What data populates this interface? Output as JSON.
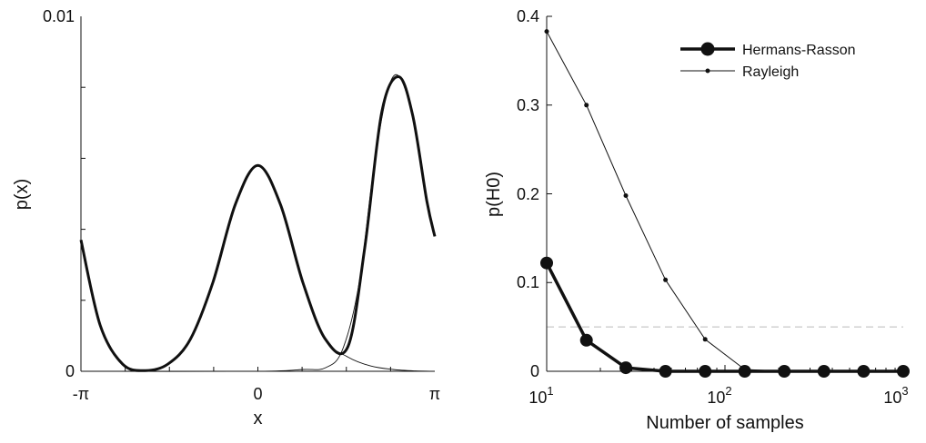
{
  "chart_data": [
    {
      "type": "line",
      "title": "",
      "xlabel": "x",
      "ylabel": "p(x)",
      "xlim": [
        -3.14159,
        3.14159
      ],
      "ylim": [
        0,
        0.01
      ],
      "x_ticks": [
        {
          "value": -3.14159,
          "label": "-π"
        },
        {
          "value": 0,
          "label": "0"
        },
        {
          "value": 3.14159,
          "label": "π"
        }
      ],
      "y_ticks": [
        {
          "value": 0,
          "label": "0"
        },
        {
          "value": 0.01,
          "label": "0.01"
        }
      ],
      "series": [
        {
          "role": "mixture-total",
          "x": [
            -3.1416,
            -2.8,
            -2.4,
            -2.0,
            -1.6,
            -1.2,
            -0.8,
            -0.4,
            0,
            0.4,
            0.8,
            1.2,
            1.6,
            1.9,
            2.2,
            2.5,
            2.75,
            3.0,
            3.1416
          ],
          "y": [
            0.0037,
            0.0013,
            0.0002,
            2e-05,
            0.0002,
            0.0009,
            0.0025,
            0.0047,
            0.0058,
            0.0047,
            0.0025,
            0.0009,
            0.0007,
            0.0035,
            0.0073,
            0.0083,
            0.0072,
            0.0048,
            0.0038
          ]
        },
        {
          "role": "component-1",
          "x": [
            -3.1416,
            -2.8,
            -2.4,
            -2.0,
            -1.6,
            -1.2,
            -0.8,
            -0.4,
            0,
            0.4,
            0.8,
            1.2,
            1.6,
            2.0,
            2.4,
            2.8,
            3.1416
          ],
          "y": [
            0.0037,
            0.0013,
            0.0002,
            2e-05,
            0.0002,
            0.0009,
            0.0025,
            0.0047,
            0.0058,
            0.0047,
            0.0025,
            0.0009,
            0.0004,
            0.00015,
            5e-05,
            1e-05,
            0
          ]
        },
        {
          "role": "component-2",
          "x": [
            -3.1416,
            0,
            0.8,
            1.2,
            1.5,
            1.8,
            2.1,
            2.4,
            2.7,
            3.0,
            3.1416
          ],
          "y": [
            0,
            0,
            5e-05,
            0.0001,
            0.0006,
            0.0025,
            0.0062,
            0.0083,
            0.0075,
            0.0048,
            0.0038
          ]
        }
      ]
    },
    {
      "type": "line",
      "title": "",
      "xlabel": "Number of samples",
      "ylabel": "p(H0)",
      "x_scale": "log",
      "xlim": [
        10,
        1000
      ],
      "ylim": [
        0,
        0.4
      ],
      "x_ticks": [
        {
          "value": 10,
          "base": "10",
          "exp": "1"
        },
        {
          "value": 100,
          "base": "10",
          "exp": "2"
        },
        {
          "value": 1000,
          "base": "10",
          "exp": "3"
        }
      ],
      "y_ticks": [
        {
          "value": 0,
          "label": "0"
        },
        {
          "value": 0.1,
          "label": "0.1"
        },
        {
          "value": 0.2,
          "label": "0.2"
        },
        {
          "value": 0.3,
          "label": "0.3"
        },
        {
          "value": 0.4,
          "label": "0.4"
        }
      ],
      "reference_line": {
        "y": 0.05,
        "style": "dashed",
        "color": "#bbbbbb"
      },
      "legend_position": "top-right",
      "series": [
        {
          "name": "Hermans-Rasson",
          "marker": "filled-circle-large",
          "line": "thick",
          "x": [
            10,
            16.7,
            27.8,
            46.4,
            77.4,
            129,
            215,
            359,
            599,
            1000
          ],
          "y": [
            0.122,
            0.035,
            0.004,
            0.0,
            0.0,
            0.0,
            0.0,
            0.0,
            0.0,
            0.0
          ]
        },
        {
          "name": "Rayleigh",
          "marker": "dot-small",
          "line": "thin",
          "x": [
            10,
            16.7,
            27.8,
            46.4,
            77.4,
            129,
            215,
            359,
            599,
            1000
          ],
          "y": [
            0.383,
            0.3,
            0.198,
            0.103,
            0.036,
            0.002,
            0.0,
            0.0,
            0.0,
            0.0
          ]
        }
      ]
    }
  ]
}
